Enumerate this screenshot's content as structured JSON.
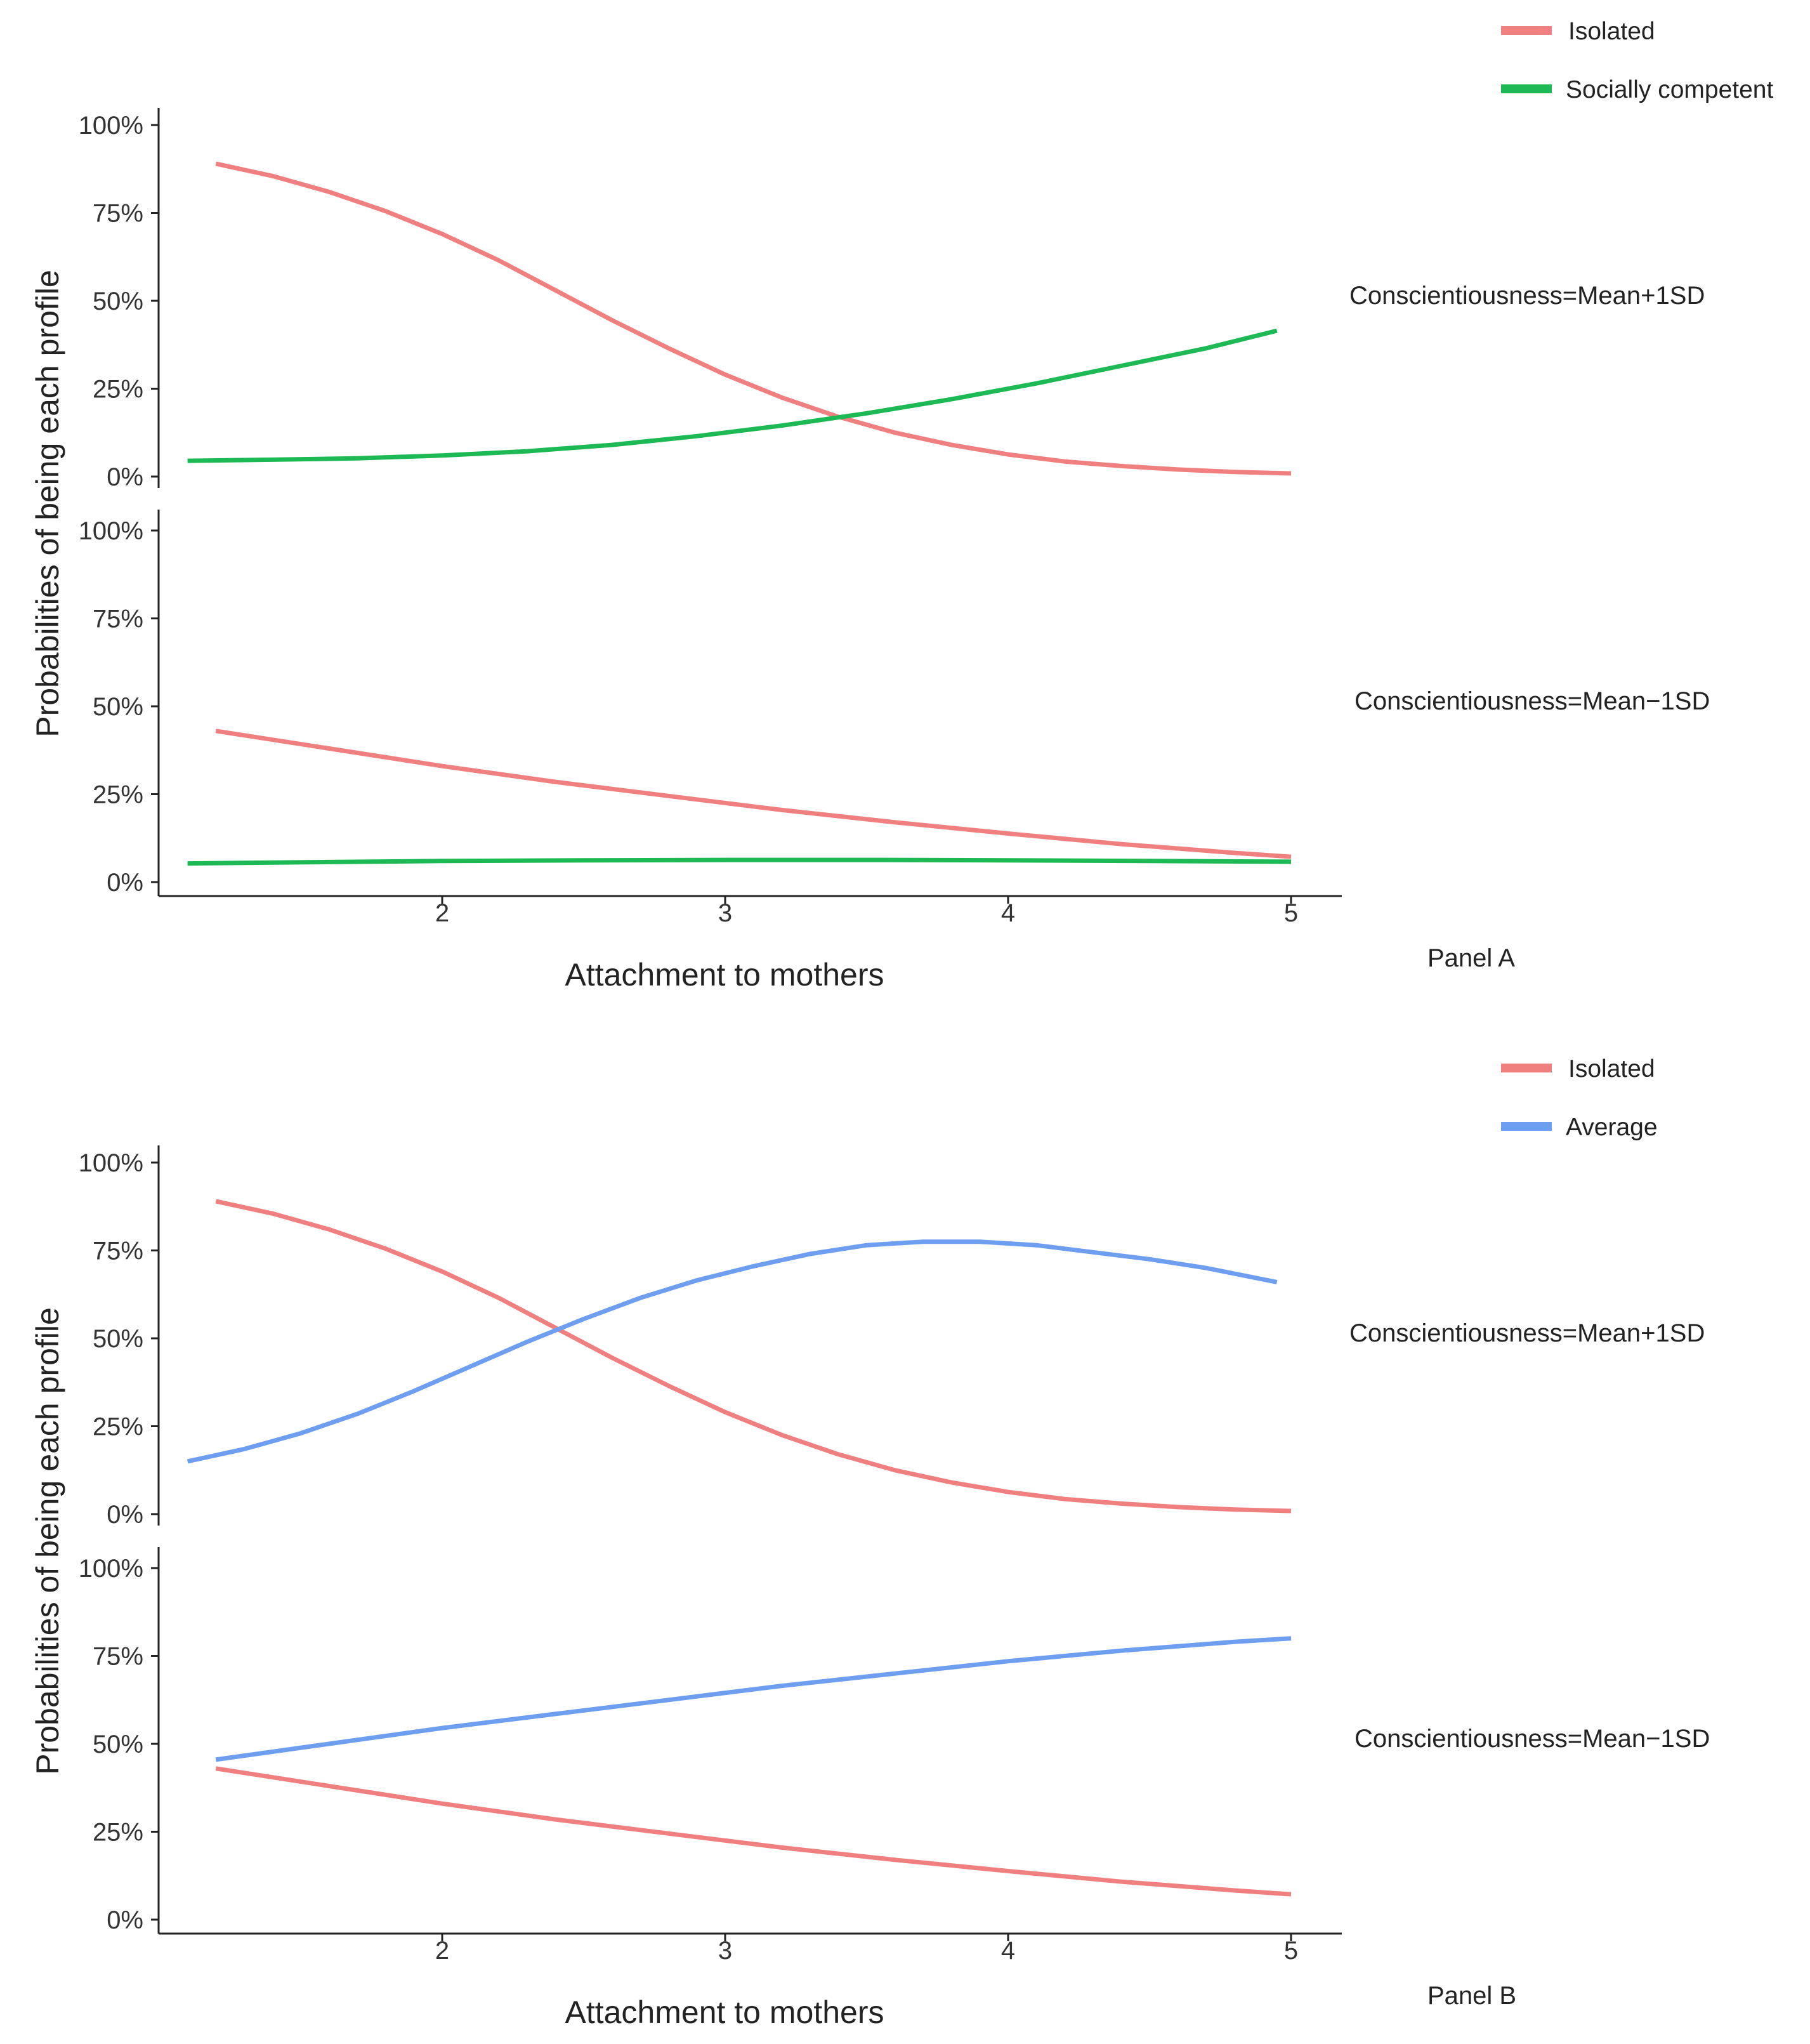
{
  "colors": {
    "isolated": "#F08080",
    "socially_competent": "#1DB954",
    "average": "#6E9EF0",
    "axis": "#222222"
  },
  "chart_data": [
    {
      "type": "line",
      "panel_label": "Panel A",
      "xlabel": "Attachment to mothers",
      "ylabel": "Probabilities of being each profile",
      "xlim": [
        1.0,
        5.2
      ],
      "x_ticks": [
        "2",
        "3",
        "4",
        "5"
      ],
      "ylim": [
        0,
        100
      ],
      "y_ticks": [
        "0%",
        "25%",
        "50%",
        "75%",
        "100%"
      ],
      "legend": [
        {
          "label": "Isolated",
          "color_key": "isolated"
        },
        {
          "label": "Socially competent",
          "color_key": "socially_competent"
        }
      ],
      "facets": [
        {
          "strip": "Conscientiousness=Mean+1SD",
          "series": [
            {
              "name": "Isolated",
              "color_key": "isolated",
              "x": [
                1.2,
                1.4,
                1.6,
                1.8,
                2.0,
                2.2,
                2.4,
                2.6,
                2.8,
                3.0,
                3.2,
                3.4,
                3.6,
                3.8,
                4.0,
                4.2,
                4.4,
                4.6,
                4.8,
                5.0
              ],
              "y": [
                89,
                85.5,
                81,
                75.5,
                69,
                61.5,
                53,
                44.5,
                36.5,
                29,
                22.5,
                17,
                12.5,
                9,
                6.3,
                4.3,
                3,
                2,
                1.3,
                0.9
              ]
            },
            {
              "name": "Socially competent",
              "color_key": "socially_competent",
              "x": [
                1.1,
                1.4,
                1.7,
                2.0,
                2.3,
                2.6,
                2.9,
                3.2,
                3.5,
                3.8,
                4.1,
                4.4,
                4.7,
                4.95
              ],
              "y": [
                4.5,
                4.8,
                5.2,
                6,
                7.2,
                9,
                11.5,
                14.5,
                18,
                22,
                26.5,
                31.5,
                36.5,
                41.5
              ]
            }
          ]
        },
        {
          "strip": "Conscientiousness=Mean−1SD",
          "series": [
            {
              "name": "Isolated",
              "color_key": "isolated",
              "x": [
                1.2,
                1.6,
                2.0,
                2.4,
                2.8,
                3.2,
                3.6,
                4.0,
                4.4,
                4.8,
                5.0
              ],
              "y": [
                43,
                38,
                33,
                28.5,
                24.5,
                20.5,
                17,
                13.8,
                10.8,
                8.3,
                7.2
              ]
            },
            {
              "name": "Socially competent",
              "color_key": "socially_competent",
              "x": [
                1.1,
                1.6,
                2.0,
                2.5,
                3.0,
                3.5,
                4.0,
                4.5,
                5.0
              ],
              "y": [
                5.3,
                5.7,
                6,
                6.2,
                6.3,
                6.3,
                6.2,
                6,
                5.8
              ]
            }
          ]
        }
      ]
    },
    {
      "type": "line",
      "panel_label": "Panel B",
      "xlabel": "Attachment to mothers",
      "ylabel": "Probabilities of being each profile",
      "xlim": [
        1.0,
        5.2
      ],
      "x_ticks": [
        "2",
        "3",
        "4",
        "5"
      ],
      "ylim": [
        0,
        100
      ],
      "y_ticks": [
        "0%",
        "25%",
        "50%",
        "75%",
        "100%"
      ],
      "legend": [
        {
          "label": "Isolated",
          "color_key": "isolated"
        },
        {
          "label": "Average",
          "color_key": "average"
        }
      ],
      "facets": [
        {
          "strip": "Conscientiousness=Mean+1SD",
          "series": [
            {
              "name": "Isolated",
              "color_key": "isolated",
              "x": [
                1.2,
                1.4,
                1.6,
                1.8,
                2.0,
                2.2,
                2.4,
                2.6,
                2.8,
                3.0,
                3.2,
                3.4,
                3.6,
                3.8,
                4.0,
                4.2,
                4.4,
                4.6,
                4.8,
                5.0
              ],
              "y": [
                89,
                85.5,
                81,
                75.5,
                69,
                61.5,
                53,
                44.5,
                36.5,
                29,
                22.5,
                17,
                12.5,
                9,
                6.3,
                4.3,
                3,
                2,
                1.3,
                0.9
              ]
            },
            {
              "name": "Average",
              "color_key": "average",
              "x": [
                1.1,
                1.3,
                1.5,
                1.7,
                1.9,
                2.1,
                2.3,
                2.5,
                2.7,
                2.9,
                3.1,
                3.3,
                3.5,
                3.7,
                3.9,
                4.1,
                4.3,
                4.5,
                4.7,
                4.95
              ],
              "y": [
                15,
                18.5,
                23,
                28.5,
                35,
                42,
                49,
                55.5,
                61.5,
                66.5,
                70.5,
                74,
                76.5,
                77.5,
                77.5,
                76.5,
                74.5,
                72.5,
                70,
                66
              ]
            }
          ]
        },
        {
          "strip": "Conscientiousness=Mean−1SD",
          "series": [
            {
              "name": "Isolated",
              "color_key": "isolated",
              "x": [
                1.2,
                1.6,
                2.0,
                2.4,
                2.8,
                3.2,
                3.6,
                4.0,
                4.4,
                4.8,
                5.0
              ],
              "y": [
                43,
                38,
                33,
                28.5,
                24.5,
                20.5,
                17,
                13.8,
                10.8,
                8.3,
                7.2
              ]
            },
            {
              "name": "Average",
              "color_key": "average",
              "x": [
                1.2,
                1.6,
                2.0,
                2.4,
                2.8,
                3.2,
                3.6,
                4.0,
                4.4,
                4.8,
                5.0
              ],
              "y": [
                45.5,
                50,
                54.5,
                58.5,
                62.5,
                66.5,
                70,
                73.5,
                76.5,
                79,
                80
              ]
            }
          ]
        }
      ]
    }
  ]
}
